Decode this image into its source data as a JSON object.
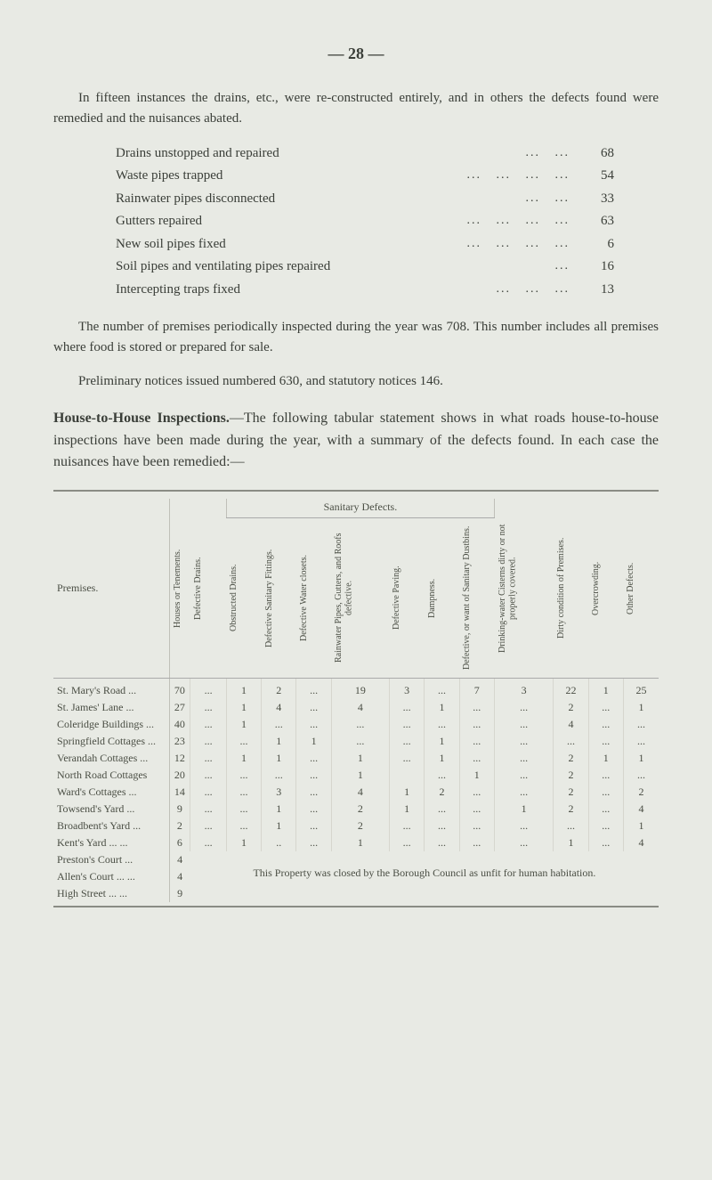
{
  "page_number_label": "— 28 —",
  "para1": "In fifteen instances the drains, etc., were re-constructed entirely, and in others the defects found were remedied and the nuisances abated.",
  "stats": [
    {
      "label": "Drains unstopped and repaired",
      "value": "68"
    },
    {
      "label": "Waste pipes trapped",
      "value": "54"
    },
    {
      "label": "Rainwater pipes disconnected",
      "value": "33"
    },
    {
      "label": "Gutters repaired",
      "value": "63"
    },
    {
      "label": "New soil pipes fixed",
      "value": "6"
    },
    {
      "label": "Soil pipes and ventilating pipes repaired",
      "value": "16"
    },
    {
      "label": "Intercepting traps fixed",
      "value": "13"
    }
  ],
  "para2": "The number of premises periodically inspected during the year was 708. This number includes all premises where food is stored or prepared for sale.",
  "para3": "Preliminary notices issued numbered 630, and statutory notices 146.",
  "section_heading_bold": "House-to-House Inspections.",
  "section_heading_rest": "—The following tabular statement shows in what roads house-to-house inspections have been made during the year, with a summary of the defects found. In each case the nuisances have been remedied:—",
  "table": {
    "group_header": "Sanitary Defects.",
    "columns": [
      "Premises.",
      "Houses or Tenements.",
      "Defective Drains.",
      "Obstructed Drains.",
      "Defective Sanitary Fittings.",
      "Defective Water closets.",
      "Rainwater Pipes, Gutters, and Roofs defective.",
      "Defective Paving.",
      "Dampness.",
      "Defective, or want of Sanitary Dustbins.",
      "Drinking-water Cisterns dirty or not properly covered.",
      "Dirty condition of Premises.",
      "Overcrowding.",
      "Other Defects."
    ],
    "rows": [
      {
        "name": "St. Mary's Road ...",
        "vals": [
          "70",
          "...",
          "1",
          "2",
          "...",
          "19",
          "3",
          "...",
          "7",
          "3",
          "22",
          "1",
          "25"
        ]
      },
      {
        "name": "St. James' Lane ...",
        "vals": [
          "27",
          "...",
          "1",
          "4",
          "...",
          "4",
          "...",
          "1",
          "...",
          "...",
          "2",
          "...",
          "1"
        ]
      },
      {
        "name": "Coleridge Buildings ...",
        "vals": [
          "40",
          "...",
          "1",
          "...",
          "...",
          "...",
          "...",
          "...",
          "...",
          "...",
          "4",
          "...",
          "..."
        ]
      },
      {
        "name": "Springfield Cottages ...",
        "vals": [
          "23",
          "...",
          "...",
          "1",
          "1",
          "...",
          "...",
          "1",
          "...",
          "...",
          "...",
          "...",
          "..."
        ]
      },
      {
        "name": "Verandah Cottages ...",
        "vals": [
          "12",
          "...",
          "1",
          "1",
          "...",
          "1",
          "...",
          "1",
          "...",
          "...",
          "2",
          "1",
          "1"
        ]
      },
      {
        "name": "North Road Cottages",
        "vals": [
          "20",
          "...",
          "...",
          "...",
          "...",
          "1",
          "",
          "...",
          "1",
          "...",
          "2",
          "...",
          "..."
        ]
      },
      {
        "name": "Ward's Cottages ...",
        "vals": [
          "14",
          "...",
          "...",
          "3",
          "...",
          "4",
          "1",
          "2",
          "...",
          "...",
          "2",
          "...",
          "2"
        ]
      },
      {
        "name": "Towsend's Yard ...",
        "vals": [
          "9",
          "...",
          "...",
          "1",
          "...",
          "2",
          "1",
          "...",
          "...",
          "1",
          "2",
          "...",
          "4"
        ]
      },
      {
        "name": "Broadbent's Yard ...",
        "vals": [
          "2",
          "...",
          "...",
          "1",
          "...",
          "2",
          "...",
          "...",
          "...",
          "...",
          "...",
          "...",
          "1"
        ]
      },
      {
        "name": "Kent's Yard ... ...",
        "vals": [
          "6",
          "...",
          "1",
          "..",
          "...",
          "1",
          "...",
          "...",
          "...",
          "...",
          "1",
          "...",
          "4"
        ]
      }
    ],
    "footnote_rows": [
      {
        "name": "Preston's Court ...",
        "h": "4"
      },
      {
        "name": "Allen's Court ... ...",
        "h": "4"
      },
      {
        "name": "High Street ... ...",
        "h": "9"
      }
    ],
    "footnote_text": "This Property was closed by the Borough Council as unfit for human habitation."
  }
}
